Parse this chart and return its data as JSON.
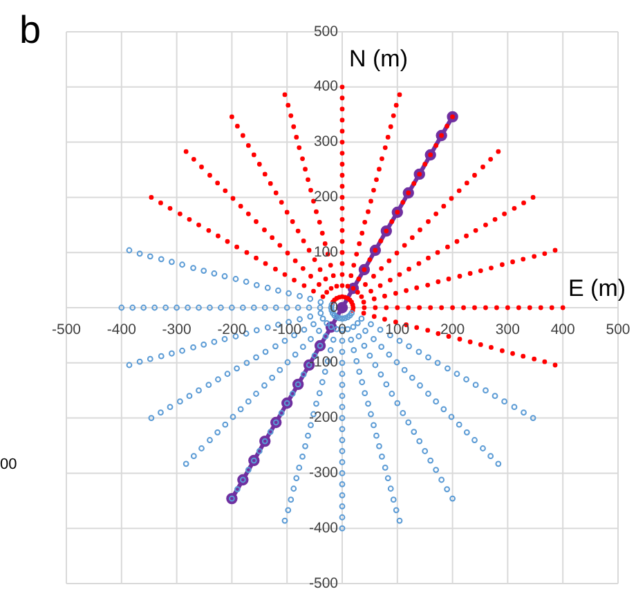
{
  "chart_data": {
    "type": "scatter",
    "xlabel": "E (m)",
    "ylabel": "N (m)",
    "annotations": [
      "b",
      "00"
    ],
    "xlim": [
      -500,
      500
    ],
    "ylim": [
      -500,
      500
    ],
    "xticks": [
      -500,
      -400,
      -300,
      -200,
      -100,
      0,
      100,
      200,
      300,
      400,
      500
    ],
    "yticks": [
      -500,
      -400,
      -300,
      -200,
      -100,
      0,
      100,
      200,
      300,
      400,
      500
    ],
    "grid": true,
    "legend": false,
    "marker": "circle",
    "series": [
      {
        "color": "#ff0000",
        "x": [
          19,
          20,
          19,
          17,
          14,
          10,
          5,
          0,
          -5,
          -10,
          -14,
          -17,
          39,
          40,
          39,
          35,
          28,
          20,
          10,
          0,
          -10,
          -20,
          -28,
          -35,
          58,
          60,
          58,
          52,
          42,
          30,
          16,
          0,
          -16,
          -30,
          -42,
          -52,
          77,
          80,
          77,
          69,
          57,
          40,
          21,
          0,
          -21,
          -40,
          -57,
          -69,
          97,
          100,
          97,
          87,
          71,
          50,
          26,
          0,
          -26,
          -50,
          -71,
          -87,
          116,
          120,
          116,
          104,
          85,
          60,
          31,
          0,
          -31,
          -60,
          -85,
          -104,
          135,
          140,
          135,
          121,
          99,
          70,
          36,
          0,
          -36,
          -70,
          -99,
          -121,
          155,
          160,
          155,
          139,
          113,
          80,
          41,
          0,
          -41,
          -80,
          -113,
          -139,
          174,
          180,
          174,
          156,
          127,
          90,
          47,
          0,
          -47,
          -90,
          -127,
          -156,
          193,
          200,
          193,
          173,
          141,
          100,
          52,
          0,
          -52,
          -100,
          -141,
          -173,
          213,
          220,
          213,
          191,
          156,
          110,
          57,
          0,
          -57,
          -110,
          -156,
          -191,
          232,
          240,
          232,
          208,
          170,
          120,
          62,
          0,
          -62,
          -120,
          -170,
          -208,
          251,
          260,
          251,
          225,
          184,
          130,
          67,
          0,
          -67,
          -130,
          -184,
          -225,
          270,
          280,
          270,
          242,
          198,
          140,
          72,
          0,
          -72,
          -140,
          -198,
          -242,
          290,
          300,
          290,
          260,
          212,
          150,
          78,
          0,
          -78,
          -150,
          -212,
          -260,
          309,
          320,
          309,
          277,
          226,
          160,
          83,
          0,
          -83,
          -160,
          -226,
          -277,
          328,
          340,
          328,
          294,
          240,
          170,
          88,
          0,
          -88,
          -170,
          -240,
          -294,
          348,
          360,
          348,
          312,
          255,
          180,
          93,
          0,
          -93,
          -180,
          -255,
          -312,
          367,
          380,
          367,
          329,
          269,
          190,
          98,
          0,
          -98,
          -190,
          -269,
          -329,
          386,
          400,
          386,
          346,
          283,
          200,
          104,
          0,
          -104,
          -200,
          -283,
          -346
        ],
        "values": [
          -5,
          0,
          5,
          10,
          14,
          17,
          19,
          20,
          19,
          17,
          14,
          10,
          -10,
          0,
          10,
          20,
          28,
          35,
          39,
          40,
          39,
          35,
          28,
          20,
          -16,
          0,
          16,
          30,
          42,
          52,
          58,
          60,
          58,
          52,
          42,
          30,
          -21,
          0,
          21,
          40,
          57,
          69,
          77,
          80,
          77,
          69,
          57,
          40,
          -26,
          0,
          26,
          50,
          71,
          87,
          97,
          100,
          97,
          87,
          71,
          50,
          -31,
          0,
          31,
          60,
          85,
          104,
          116,
          120,
          116,
          104,
          85,
          60,
          -36,
          0,
          36,
          70,
          99,
          121,
          135,
          140,
          135,
          121,
          99,
          70,
          -41,
          0,
          41,
          80,
          113,
          139,
          155,
          160,
          155,
          139,
          113,
          80,
          -47,
          0,
          47,
          90,
          127,
          156,
          174,
          180,
          174,
          156,
          127,
          90,
          -52,
          0,
          52,
          100,
          141,
          173,
          193,
          200,
          193,
          173,
          141,
          100,
          -57,
          0,
          57,
          110,
          156,
          191,
          213,
          220,
          213,
          191,
          156,
          110,
          -62,
          0,
          62,
          120,
          170,
          208,
          232,
          240,
          232,
          208,
          170,
          120,
          -67,
          0,
          67,
          130,
          184,
          225,
          251,
          260,
          251,
          225,
          184,
          130,
          -72,
          0,
          72,
          140,
          198,
          242,
          270,
          280,
          270,
          242,
          198,
          140,
          -78,
          0,
          78,
          150,
          212,
          260,
          290,
          300,
          290,
          260,
          212,
          150,
          -83,
          0,
          83,
          160,
          226,
          277,
          309,
          320,
          309,
          277,
          226,
          160,
          -88,
          0,
          88,
          170,
          240,
          294,
          328,
          340,
          328,
          294,
          240,
          170,
          -93,
          0,
          93,
          180,
          255,
          312,
          348,
          360,
          348,
          312,
          255,
          180,
          -98,
          0,
          98,
          190,
          269,
          329,
          367,
          380,
          367,
          329,
          269,
          190,
          -104,
          0,
          104,
          200,
          283,
          346,
          386,
          400,
          386,
          346,
          283,
          200
        ]
      },
      {
        "color": "#5b9bd5",
        "x": [
          -19,
          -20,
          -19,
          -17,
          -14,
          -10,
          -5,
          0,
          5,
          10,
          14,
          17,
          -39,
          -40,
          -39,
          -35,
          -28,
          -20,
          -10,
          0,
          10,
          20,
          28,
          35,
          -58,
          -60,
          -58,
          -52,
          -42,
          -30,
          -16,
          0,
          16,
          30,
          42,
          52,
          -77,
          -80,
          -77,
          -69,
          -57,
          -40,
          -21,
          0,
          21,
          40,
          57,
          69,
          -97,
          -100,
          -97,
          -87,
          -71,
          -50,
          -26,
          0,
          26,
          50,
          71,
          87,
          -116,
          -120,
          -116,
          -104,
          -85,
          -60,
          -31,
          0,
          31,
          60,
          85,
          104,
          -135,
          -140,
          -135,
          -121,
          -99,
          -70,
          -36,
          0,
          36,
          70,
          99,
          121,
          -155,
          -160,
          -155,
          -139,
          -113,
          -80,
          -41,
          0,
          41,
          80,
          113,
          139,
          -174,
          -180,
          -174,
          -156,
          -127,
          -90,
          -47,
          0,
          47,
          90,
          127,
          156,
          -193,
          -200,
          -193,
          -173,
          -141,
          -100,
          -52,
          0,
          52,
          100,
          141,
          173,
          -213,
          -220,
          -213,
          -191,
          -156,
          -110,
          -57,
          0,
          57,
          110,
          156,
          191,
          -232,
          -240,
          -232,
          -208,
          -170,
          -120,
          -62,
          0,
          62,
          120,
          170,
          208,
          -251,
          -260,
          -251,
          -225,
          -184,
          -130,
          -67,
          0,
          67,
          130,
          184,
          225,
          -270,
          -280,
          -270,
          -242,
          -198,
          -140,
          -72,
          0,
          72,
          140,
          198,
          242,
          -290,
          -300,
          -290,
          -260,
          -212,
          -150,
          -78,
          0,
          78,
          150,
          212,
          260,
          -309,
          -320,
          -309,
          -277,
          -226,
          -160,
          -83,
          0,
          83,
          160,
          226,
          277,
          -328,
          -340,
          -328,
          -294,
          -240,
          -170,
          -88,
          0,
          88,
          170,
          240,
          294,
          -348,
          -360,
          -348,
          -312,
          -255,
          -180,
          -93,
          0,
          93,
          180,
          255,
          312,
          -367,
          -380,
          -367,
          -329,
          -269,
          -190,
          -98,
          0,
          98,
          190,
          269,
          329,
          -386,
          -400,
          -386,
          -346,
          -283,
          -200,
          -104,
          0,
          104,
          200,
          283,
          346
        ],
        "values": [
          5,
          0,
          -5,
          -10,
          -14,
          -17,
          -19,
          -20,
          -19,
          -17,
          -14,
          -10,
          10,
          0,
          -10,
          -20,
          -28,
          -35,
          -39,
          -40,
          -39,
          -35,
          -28,
          -20,
          16,
          0,
          -16,
          -30,
          -42,
          -52,
          -58,
          -60,
          -58,
          -52,
          -42,
          -30,
          21,
          0,
          -21,
          -40,
          -57,
          -69,
          -77,
          -80,
          -77,
          -69,
          -57,
          -40,
          26,
          0,
          -26,
          -50,
          -71,
          -87,
          -97,
          -100,
          -97,
          -87,
          -71,
          -50,
          31,
          0,
          -31,
          -60,
          -85,
          -104,
          -116,
          -120,
          -116,
          -104,
          -85,
          -60,
          36,
          0,
          -36,
          -70,
          -99,
          -121,
          -135,
          -140,
          -135,
          -121,
          -99,
          -70,
          41,
          0,
          -41,
          -80,
          -113,
          -139,
          -155,
          -160,
          -155,
          -139,
          -113,
          -80,
          47,
          0,
          -47,
          -90,
          -127,
          -156,
          -174,
          -180,
          -174,
          -156,
          -127,
          -90,
          52,
          0,
          -52,
          -100,
          -141,
          -173,
          -193,
          -200,
          -193,
          -173,
          -141,
          -100,
          57,
          0,
          -57,
          -110,
          -156,
          -191,
          -213,
          -220,
          -213,
          -191,
          -156,
          -110,
          62,
          0,
          -62,
          -120,
          -170,
          -208,
          -232,
          -240,
          -232,
          -208,
          -170,
          -120,
          67,
          0,
          -67,
          -130,
          -184,
          -225,
          -251,
          -260,
          -251,
          -225,
          -184,
          -130,
          72,
          0,
          -72,
          -140,
          -198,
          -242,
          -270,
          -280,
          -270,
          -242,
          -198,
          -140,
          78,
          0,
          -78,
          -150,
          -212,
          -260,
          -290,
          -300,
          -290,
          -260,
          -212,
          -150,
          83,
          0,
          -83,
          -160,
          -226,
          -277,
          -309,
          -320,
          -309,
          -277,
          -226,
          -160,
          88,
          0,
          -88,
          -170,
          -240,
          -294,
          -328,
          -340,
          -328,
          -294,
          -240,
          -170,
          93,
          0,
          -93,
          -180,
          -255,
          -312,
          -348,
          -360,
          -348,
          -312,
          -255,
          -180,
          98,
          0,
          -98,
          -190,
          -269,
          -329,
          -367,
          -380,
          -367,
          -329,
          -269,
          -190,
          104,
          0,
          -104,
          -200,
          -283,
          -346,
          -386,
          -400,
          -386,
          -346,
          -283,
          -200
        ]
      },
      {
        "type": "line",
        "color": "#7030a0",
        "line_style": "solid",
        "x": [
          -200,
          -180,
          -160,
          -140,
          -120,
          -100,
          -80,
          -60,
          -40,
          -20,
          0,
          20,
          40,
          60,
          80,
          100,
          120,
          140,
          160,
          180,
          200
        ],
        "values": [
          -346,
          -312,
          -277,
          -242,
          -208,
          -173,
          -139,
          -104,
          -69,
          -35,
          0,
          35,
          69,
          104,
          139,
          173,
          208,
          242,
          277,
          312,
          346
        ]
      }
    ]
  }
}
